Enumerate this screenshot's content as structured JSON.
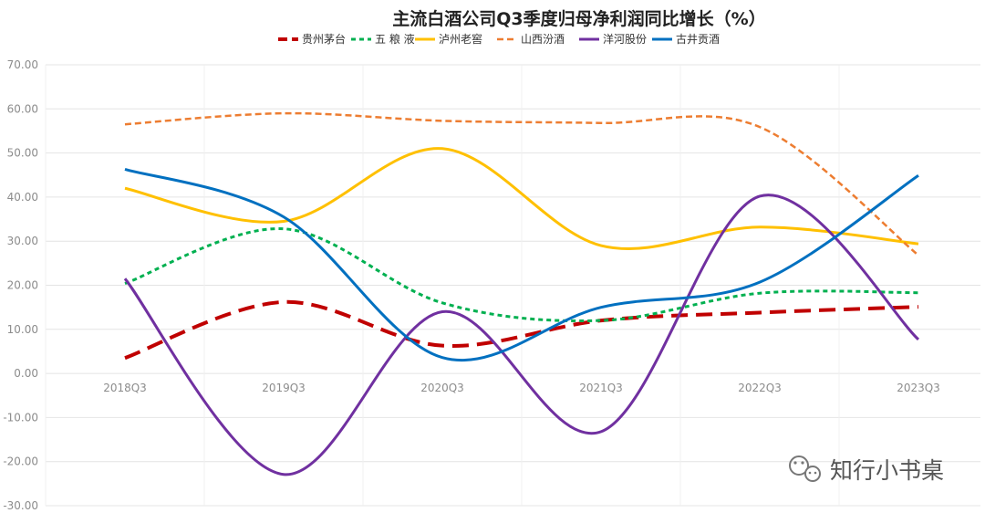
{
  "chart_data": {
    "type": "line",
    "title": "主流白酒公司Q3季度归母净利润同比增长（%）",
    "xlabel": "",
    "ylabel": "",
    "categories": [
      "2018Q3",
      "2019Q3",
      "2020Q3",
      "2021Q3",
      "2022Q3",
      "2023Q3"
    ],
    "ylim": [
      -30,
      70
    ],
    "yticks": [
      "-30.00",
      "-20.00",
      "-10.00",
      "0.00",
      "10.00",
      "20.00",
      "30.00",
      "40.00",
      "50.00",
      "60.00",
      "70.00"
    ],
    "ytick_values": [
      -30,
      -20,
      -10,
      0,
      10,
      20,
      30,
      40,
      50,
      60,
      70
    ],
    "legend_position": "top-center",
    "grid": true,
    "series": [
      {
        "name": "贵州茅台",
        "values": [
          3.5,
          16.2,
          6.3,
          12.0,
          13.8,
          15.1
        ],
        "color": "#c00000",
        "dash": "long"
      },
      {
        "name": "五 粮 液",
        "values": [
          20.4,
          32.8,
          16.0,
          12.0,
          18.2,
          18.3
        ],
        "color": "#00b050",
        "dash": "dot"
      },
      {
        "name": "泸州老窖",
        "values": [
          42.0,
          34.5,
          51.0,
          29.0,
          33.2,
          29.4
        ],
        "color": "#ffc000",
        "dash": "solid"
      },
      {
        "name": "山西汾酒",
        "values": [
          56.5,
          59.0,
          57.3,
          56.8,
          55.9,
          26.8
        ],
        "color": "#ed7d31",
        "dash": "short"
      },
      {
        "name": "洋河股份",
        "values": [
          21.5,
          -22.9,
          14.0,
          -13.2,
          40.2,
          7.7
        ],
        "color": "#7030a0",
        "dash": "solid"
      },
      {
        "name": "古井贡酒",
        "values": [
          46.3,
          35.5,
          3.6,
          15.0,
          20.7,
          44.9
        ],
        "color": "#0070c0",
        "dash": "solid"
      }
    ]
  },
  "watermark": {
    "text": "知行小书桌",
    "icon": "wechat-icon"
  }
}
